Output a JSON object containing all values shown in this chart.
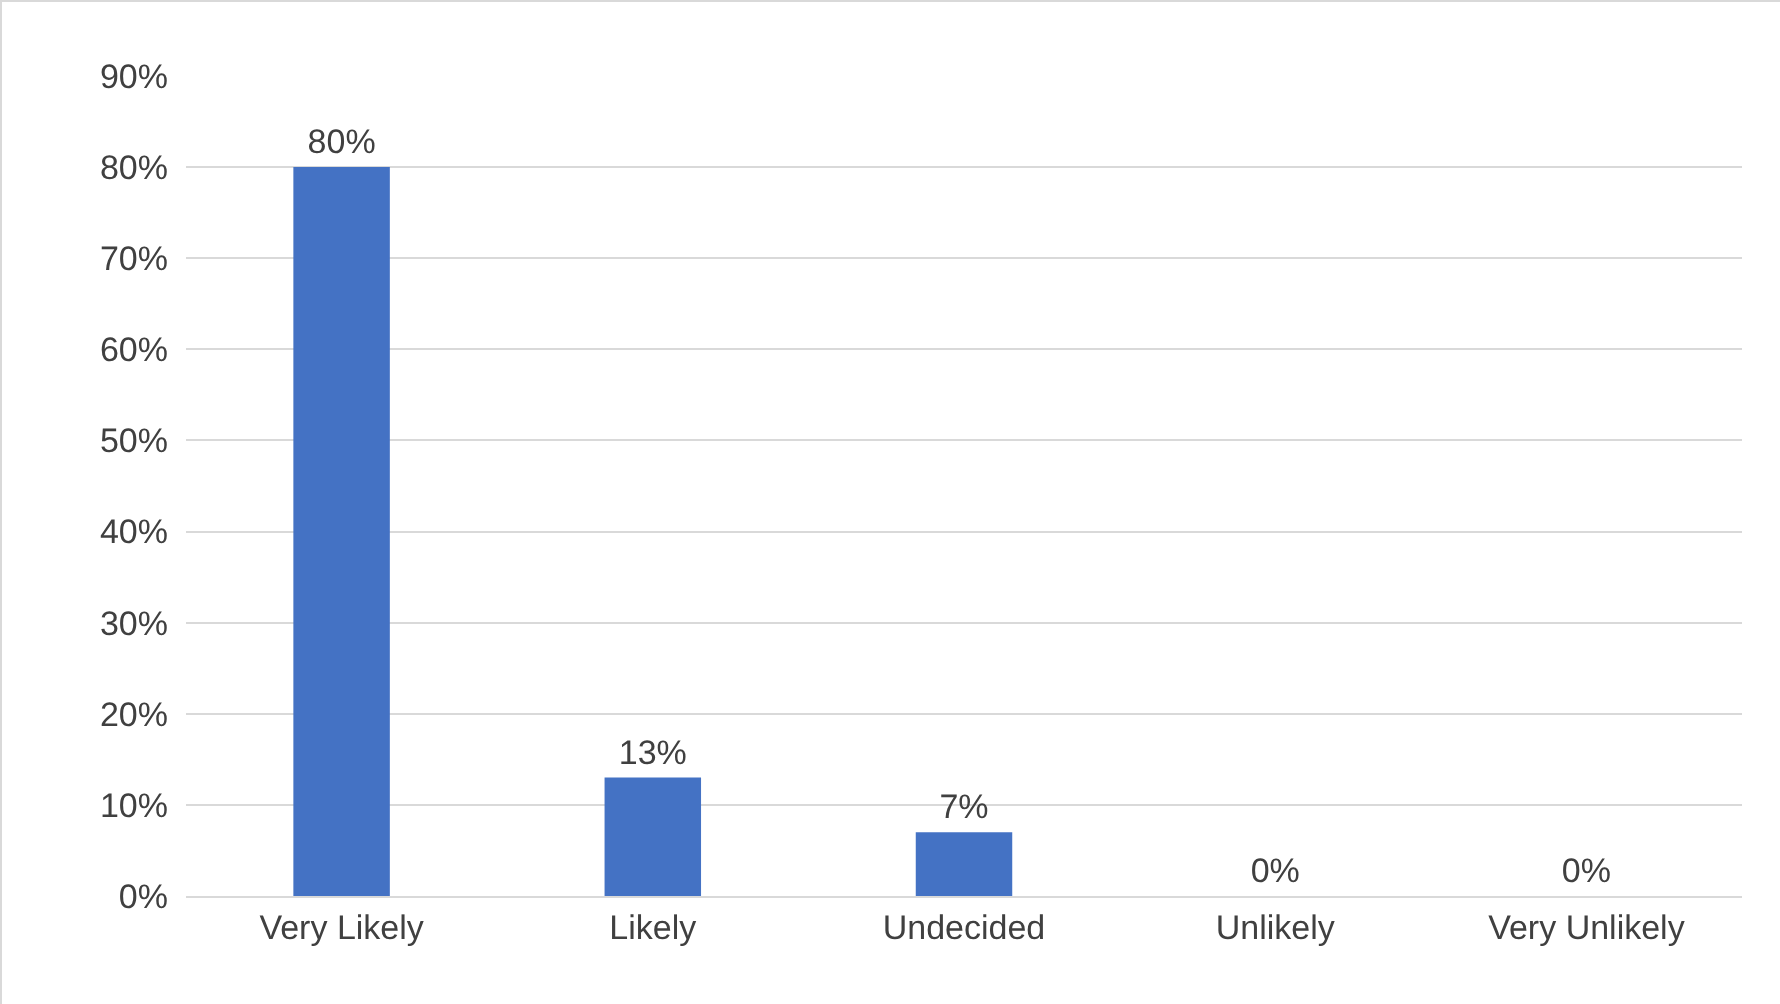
{
  "chart_data": {
    "type": "bar",
    "categories": [
      "Very Likely",
      "Likely",
      "Undecided",
      "Unlikely",
      "Very Unlikely"
    ],
    "values": [
      80,
      13,
      7,
      0,
      0
    ],
    "value_labels": [
      "80%",
      "13%",
      "7%",
      "0%",
      "0%"
    ],
    "color": "#4472c4",
    "ylim": [
      0,
      90
    ],
    "yticks": [
      {
        "value": 0,
        "label": "0%"
      },
      {
        "value": 10,
        "label": "10%"
      },
      {
        "value": 20,
        "label": "20%"
      },
      {
        "value": 30,
        "label": "30%"
      },
      {
        "value": 40,
        "label": "40%"
      },
      {
        "value": 50,
        "label": "50%"
      },
      {
        "value": 60,
        "label": "60%"
      },
      {
        "value": 70,
        "label": "70%"
      },
      {
        "value": 80,
        "label": "80%"
      },
      {
        "value": 90,
        "label": "90%"
      }
    ],
    "grid": "y"
  }
}
